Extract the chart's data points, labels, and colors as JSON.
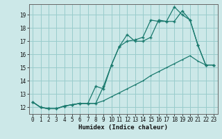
{
  "xlabel": "Humidex (Indice chaleur)",
  "bg_color": "#cce8e8",
  "grid_color": "#99cccc",
  "line_color": "#1a7a6e",
  "xlim": [
    -0.5,
    23.5
  ],
  "ylim": [
    11.5,
    19.8
  ],
  "xticks": [
    0,
    1,
    2,
    3,
    4,
    5,
    6,
    7,
    8,
    9,
    10,
    11,
    12,
    13,
    14,
    15,
    16,
    17,
    18,
    19,
    20,
    21,
    22,
    23
  ],
  "yticks": [
    12,
    13,
    14,
    15,
    16,
    17,
    18,
    19
  ],
  "line1_x": [
    0,
    1,
    2,
    3,
    4,
    5,
    6,
    7,
    8,
    9,
    10,
    11,
    12,
    13,
    14,
    15,
    16,
    17,
    18,
    19,
    20,
    21,
    22,
    23
  ],
  "line1_y": [
    12.4,
    12.0,
    11.9,
    11.9,
    12.1,
    12.2,
    12.3,
    12.3,
    12.3,
    13.6,
    15.2,
    16.6,
    17.5,
    17.0,
    17.0,
    17.3,
    18.6,
    18.5,
    18.5,
    19.3,
    18.6,
    16.7,
    15.2,
    15.2
  ],
  "line2_x": [
    0,
    1,
    2,
    3,
    4,
    5,
    6,
    7,
    8,
    9,
    10,
    11,
    12,
    13,
    14,
    15,
    16,
    17,
    18,
    19,
    20,
    21,
    22,
    23
  ],
  "line2_y": [
    12.4,
    12.0,
    11.9,
    11.9,
    12.1,
    12.2,
    12.3,
    12.3,
    13.6,
    13.4,
    15.2,
    16.6,
    17.0,
    17.1,
    17.3,
    18.6,
    18.5,
    18.5,
    19.6,
    19.0,
    18.6,
    16.7,
    15.2,
    15.2
  ],
  "line3_x": [
    0,
    1,
    2,
    3,
    4,
    5,
    6,
    7,
    8,
    9,
    10,
    11,
    12,
    13,
    14,
    15,
    16,
    17,
    18,
    19,
    20,
    21,
    22,
    23
  ],
  "line3_y": [
    12.4,
    12.0,
    11.9,
    11.9,
    12.1,
    12.2,
    12.3,
    12.3,
    12.3,
    12.5,
    12.8,
    13.1,
    13.4,
    13.7,
    14.0,
    14.4,
    14.7,
    15.0,
    15.3,
    15.6,
    15.9,
    15.5,
    15.2,
    15.2
  ],
  "tick_fontsize": 5.5,
  "xlabel_fontsize": 6.5
}
